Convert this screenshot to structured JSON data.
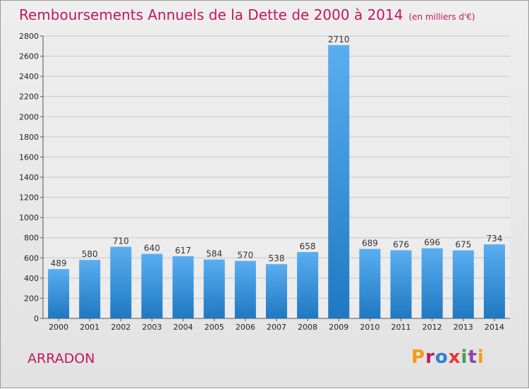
{
  "title": "Remboursements Annuels de la Dette de 2000 à 2014",
  "unit": "(en milliers d'€)",
  "commune": "ARRADON",
  "logo": "Proxiti",
  "colors": {
    "title": "#c2185b",
    "bar_top": "#5aaef0",
    "bar_bottom": "#1f78c1",
    "grid": "#c8c8c8",
    "logo": [
      "#f39c12",
      "#c2185b",
      "#2e7fd1",
      "#e53935",
      "#43a047",
      "#8e44ad",
      "#f39c12"
    ]
  },
  "chart_data": {
    "type": "bar",
    "categories": [
      "2000",
      "2001",
      "2002",
      "2003",
      "2004",
      "2005",
      "2006",
      "2007",
      "2008",
      "2009",
      "2010",
      "2011",
      "2012",
      "2013",
      "2014"
    ],
    "values": [
      489,
      580,
      710,
      640,
      617,
      584,
      570,
      538,
      658,
      2710,
      689,
      676,
      696,
      675,
      734
    ],
    "yticks": [
      0,
      200,
      400,
      600,
      800,
      1000,
      1200,
      1400,
      1600,
      1800,
      2000,
      2200,
      2400,
      2600,
      2800
    ],
    "ylim": [
      0,
      2800
    ],
    "grid": true
  }
}
